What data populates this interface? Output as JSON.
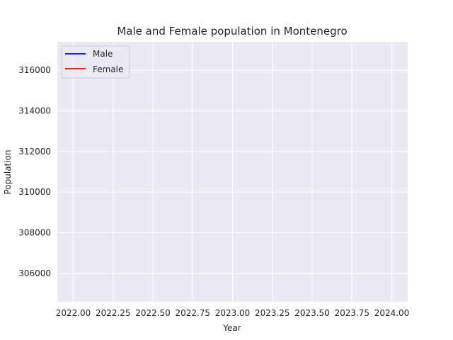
{
  "chart_data": {
    "type": "line",
    "title": "Male and Female population in Montenegro",
    "xlabel": "Year",
    "ylabel": "Population",
    "xlim": [
      2021.9,
      2024.1
    ],
    "ylim": [
      304600,
      317400
    ],
    "x_ticks": [
      2022.0,
      2022.25,
      2022.5,
      2022.75,
      2023.0,
      2023.25,
      2023.5,
      2023.75,
      2024.0
    ],
    "x_tick_labels": [
      "2022.00",
      "2022.25",
      "2022.50",
      "2022.75",
      "2023.00",
      "2023.25",
      "2023.50",
      "2023.75",
      "2024.00"
    ],
    "y_ticks": [
      306000,
      308000,
      310000,
      312000,
      314000,
      316000
    ],
    "y_tick_labels": [
      "306000",
      "308000",
      "310000",
      "312000",
      "314000",
      "316000"
    ],
    "grid": true,
    "legend_position": "top-left",
    "series": [
      {
        "name": "Male",
        "color": "#0000ff",
        "x": [],
        "y": []
      },
      {
        "name": "Female",
        "color": "#ff0000",
        "x": [],
        "y": []
      }
    ]
  },
  "style": {
    "plot_background": "#eaeaf2",
    "grid_color": "#ffffff"
  }
}
